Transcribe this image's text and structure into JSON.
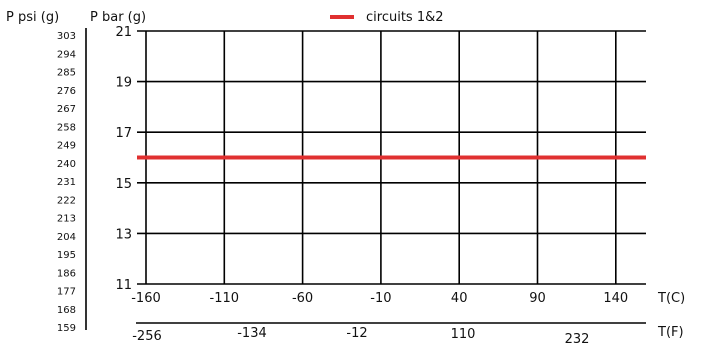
{
  "chart_data": {
    "type": "line",
    "title": "",
    "legend": {
      "placement": "top-center",
      "entries": [
        "circuits 1&2"
      ]
    },
    "series": [
      {
        "name": "circuits 1&2",
        "color": "#e03030",
        "x": [
          -160,
          140
        ],
        "values": [
          16,
          16
        ]
      }
    ],
    "xlabel_c": "T(C)",
    "xlabel_f": "T(F)",
    "ylabel_bar": "P bar (g)",
    "ylabel_psi": "P psi (g)",
    "x_ticks_c": [
      "-160",
      "-110",
      "-60",
      "-10",
      "40",
      "90",
      "140"
    ],
    "x_ticks_f": [
      "-256",
      "-134",
      "-12",
      "110",
      "232"
    ],
    "y_ticks_bar": [
      "21",
      "19",
      "17",
      "15",
      "13",
      "11"
    ],
    "y_ticks_psi": [
      "303",
      "294",
      "285",
      "276",
      "267",
      "258",
      "249",
      "240",
      "231",
      "222",
      "213",
      "204",
      "195",
      "186",
      "177",
      "168",
      "159"
    ],
    "xlim": [
      -160,
      153
    ],
    "ylim": [
      11,
      21
    ],
    "grid": true
  }
}
